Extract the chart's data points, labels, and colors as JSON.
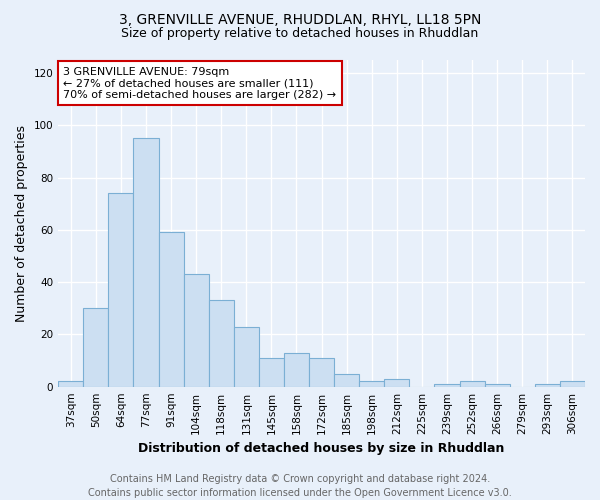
{
  "title": "3, GRENVILLE AVENUE, RHUDDLAN, RHYL, LL18 5PN",
  "subtitle": "Size of property relative to detached houses in Rhuddlan",
  "xlabel": "Distribution of detached houses by size in Rhuddlan",
  "ylabel": "Number of detached properties",
  "categories": [
    "37sqm",
    "50sqm",
    "64sqm",
    "77sqm",
    "91sqm",
    "104sqm",
    "118sqm",
    "131sqm",
    "145sqm",
    "158sqm",
    "172sqm",
    "185sqm",
    "198sqm",
    "212sqm",
    "225sqm",
    "239sqm",
    "252sqm",
    "266sqm",
    "279sqm",
    "293sqm",
    "306sqm"
  ],
  "values": [
    2,
    30,
    74,
    95,
    59,
    43,
    33,
    23,
    11,
    13,
    11,
    5,
    2,
    3,
    0,
    1,
    2,
    1,
    0,
    1,
    2
  ],
  "bar_color": "#ccdff2",
  "bar_edge_color": "#7bafd4",
  "annotation_text": "3 GRENVILLE AVENUE: 79sqm\n← 27% of detached houses are smaller (111)\n70% of semi-detached houses are larger (282) →",
  "annotation_box_color": "#ffffff",
  "annotation_box_edgecolor": "#cc0000",
  "ylim": [
    0,
    125
  ],
  "yticks": [
    0,
    20,
    40,
    60,
    80,
    100,
    120
  ],
  "footer_text": "Contains HM Land Registry data © Crown copyright and database right 2024.\nContains public sector information licensed under the Open Government Licence v3.0.",
  "background_color": "#e8f0fa",
  "grid_color": "#ffffff",
  "title_fontsize": 10,
  "subtitle_fontsize": 9,
  "axis_label_fontsize": 9,
  "tick_fontsize": 7.5,
  "annotation_fontsize": 8,
  "footer_fontsize": 7
}
